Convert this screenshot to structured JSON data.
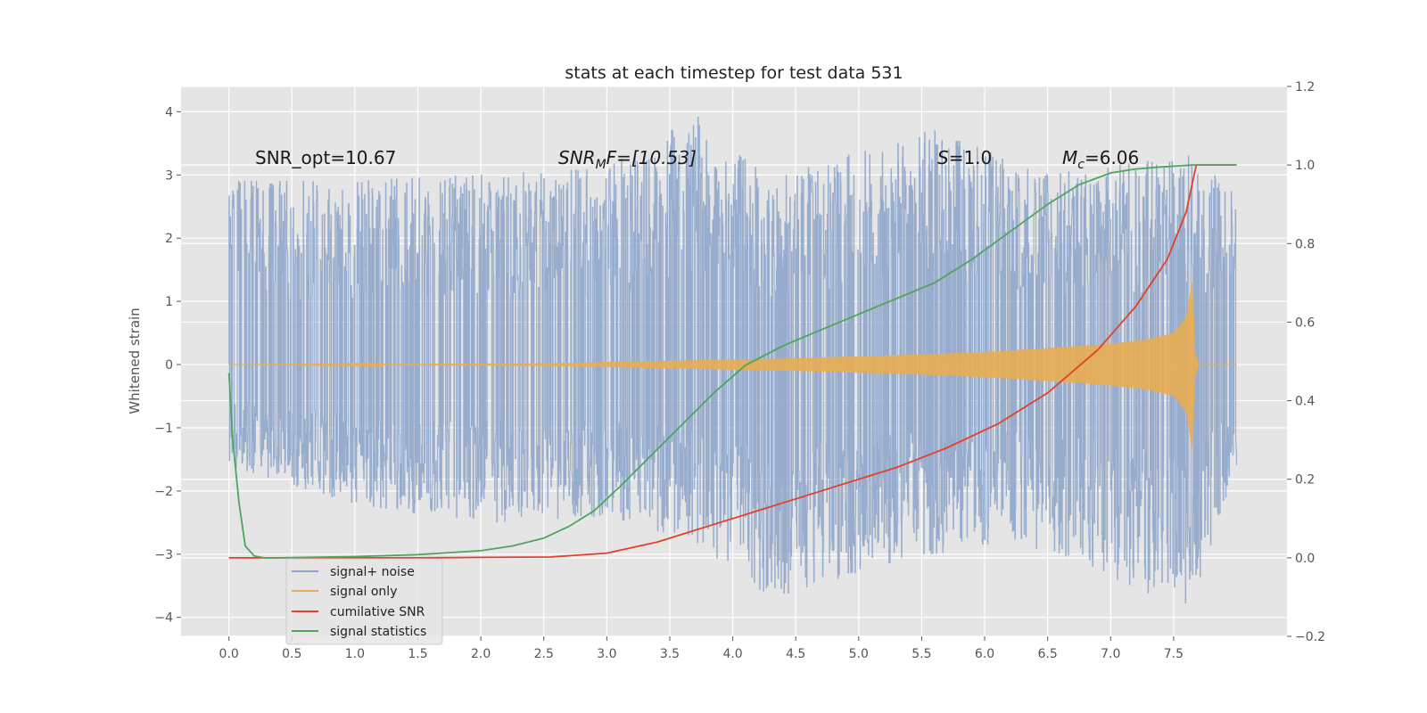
{
  "chart_data": {
    "type": "line",
    "title": "stats at each timestep for test data 531",
    "ylabel": "Whitened strain",
    "xlabel": "",
    "xlim": [
      -0.38,
      8.4
    ],
    "ylim": [
      -4.3,
      4.4
    ],
    "y2lim": [
      -0.2,
      1.2
    ],
    "xticks": [
      "0.0",
      "0.5",
      "1.0",
      "1.5",
      "2.0",
      "2.5",
      "3.0",
      "3.5",
      "4.0",
      "4.5",
      "5.0",
      "5.5",
      "6.0",
      "6.5",
      "7.0",
      "7.5"
    ],
    "yticks": [
      "−4",
      "−3",
      "−2",
      "−1",
      "0",
      "1",
      "2",
      "3",
      "4"
    ],
    "y2ticks": [
      "−0.2",
      "0.0",
      "0.2",
      "0.4",
      "0.6",
      "0.8",
      "1.0",
      "1.2"
    ],
    "grid": true,
    "legend_position": "lower-left",
    "annotations": {
      "snr_opt": "SNR_opt=10.67",
      "snr_mf_base": "SNR",
      "snr_mf_sub": "M",
      "snr_mf_rest": "F=[10.53]",
      "s_italic": "S",
      "s_rest": "=1.0",
      "mc_base": "M",
      "mc_sub": "c",
      "mc_rest": "=6.06"
    },
    "series": [
      {
        "name": "signal+ noise",
        "color": "#8fa6cb",
        "description_kind": "noise",
        "x_range": [
          0.0,
          8.0
        ],
        "envelope": [
          [
            0.0,
            -1.6,
            2.9
          ],
          [
            1.0,
            -2.2,
            2.9
          ],
          [
            2.0,
            -2.5,
            3.0
          ],
          [
            3.0,
            -2.4,
            3.1
          ],
          [
            3.7,
            -2.8,
            4.0
          ],
          [
            4.3,
            -3.7,
            2.9
          ],
          [
            5.47,
            -3.0,
            3.8
          ],
          [
            6.5,
            -2.9,
            3.0
          ],
          [
            7.62,
            -3.9,
            3.3
          ],
          [
            8.0,
            -1.6,
            2.8
          ]
        ]
      },
      {
        "name": "signal only",
        "color": "#e8ad52",
        "amplitude": [
          [
            0.0,
            0.0
          ],
          [
            2.5,
            0.02
          ],
          [
            3.5,
            0.06
          ],
          [
            4.5,
            0.1
          ],
          [
            5.5,
            0.16
          ],
          [
            6.0,
            0.2
          ],
          [
            6.5,
            0.26
          ],
          [
            7.0,
            0.33
          ],
          [
            7.3,
            0.4
          ],
          [
            7.5,
            0.5
          ],
          [
            7.6,
            0.75
          ],
          [
            7.65,
            1.35
          ],
          [
            7.67,
            0.2
          ],
          [
            7.7,
            0.0
          ],
          [
            8.0,
            0.0
          ]
        ]
      },
      {
        "name": "cumilative SNR",
        "color": "#e2402b",
        "axis": "right",
        "x": [
          0.0,
          0.5,
          1.0,
          1.5,
          2.0,
          2.55,
          3.0,
          3.4,
          3.6,
          3.9,
          4.2,
          4.5,
          4.9,
          5.3,
          5.7,
          6.1,
          6.5,
          6.9,
          7.2,
          7.45,
          7.6,
          7.68,
          7.8,
          8.0
        ],
        "y": [
          0.0,
          0.0,
          0.0,
          0.0,
          0.001,
          0.002,
          0.012,
          0.04,
          0.06,
          0.09,
          0.12,
          0.15,
          0.19,
          0.23,
          0.28,
          0.34,
          0.42,
          0.53,
          0.64,
          0.76,
          0.88,
          1.0,
          1.0,
          1.0
        ]
      },
      {
        "name": "signal statistics",
        "color": "#4ea55c",
        "axis": "right",
        "x": [
          0.0,
          0.03,
          0.08,
          0.13,
          0.2,
          0.28,
          0.4,
          0.6,
          1.0,
          1.5,
          2.0,
          2.25,
          2.5,
          2.7,
          2.9,
          3.1,
          3.35,
          3.6,
          3.85,
          4.1,
          4.4,
          4.7,
          5.0,
          5.3,
          5.6,
          5.9,
          6.2,
          6.5,
          6.75,
          7.0,
          7.2,
          7.4,
          7.65,
          8.0
        ],
        "y": [
          0.47,
          0.3,
          0.14,
          0.03,
          0.005,
          0.0,
          0.0,
          0.001,
          0.003,
          0.008,
          0.018,
          0.03,
          0.05,
          0.08,
          0.12,
          0.18,
          0.26,
          0.34,
          0.42,
          0.49,
          0.54,
          0.58,
          0.62,
          0.66,
          0.7,
          0.76,
          0.83,
          0.9,
          0.95,
          0.98,
          0.99,
          0.995,
          1.0,
          1.0
        ]
      }
    ]
  }
}
